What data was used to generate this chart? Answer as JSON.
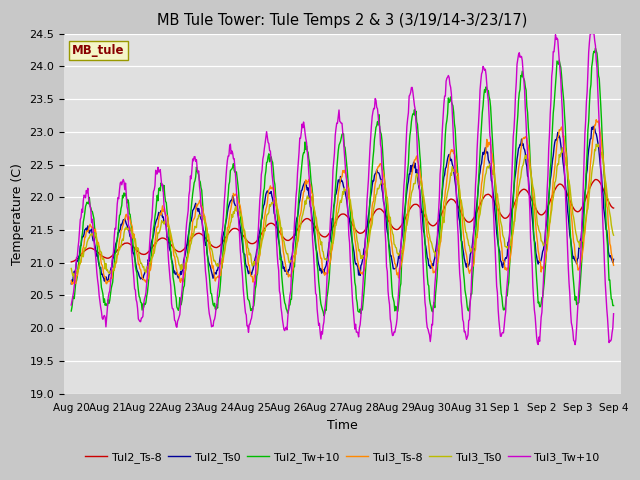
{
  "title": "MB Tule Tower: Tule Temps 2 & 3 (3/19/14-3/23/17)",
  "xlabel": "Time",
  "ylabel": "Temperature (C)",
  "ylim": [
    19.0,
    24.5
  ],
  "yticks": [
    19.0,
    19.5,
    20.0,
    20.5,
    21.0,
    21.5,
    22.0,
    22.5,
    23.0,
    23.5,
    24.0,
    24.5
  ],
  "fig_bg_color": "#c8c8c8",
  "plot_bg": "#e0e0e0",
  "legend_label": "MB_tule",
  "legend_box_facecolor": "#f5f5c8",
  "legend_box_edgecolor": "#999900",
  "legend_text_color": "#880000",
  "series_colors": {
    "Tul2_Ts-8": "#cc0000",
    "Tul2_Ts0": "#000099",
    "Tul2_Tw+10": "#00bb00",
    "Tul3_Ts-8": "#ff8800",
    "Tul3_Ts0": "#bbbb00",
    "Tul3_Tw+10": "#cc00cc"
  },
  "line_width": 1.0,
  "xtick_labels": [
    "Aug 20",
    "Aug 21",
    "Aug 22",
    "Aug 23",
    "Aug 24",
    "Aug 25",
    "Aug 26",
    "Aug 27",
    "Aug 28",
    "Aug 29",
    "Aug 30",
    "Aug 31",
    "Sep 1",
    "Sep 2",
    "Sep 3",
    "Sep 4"
  ]
}
